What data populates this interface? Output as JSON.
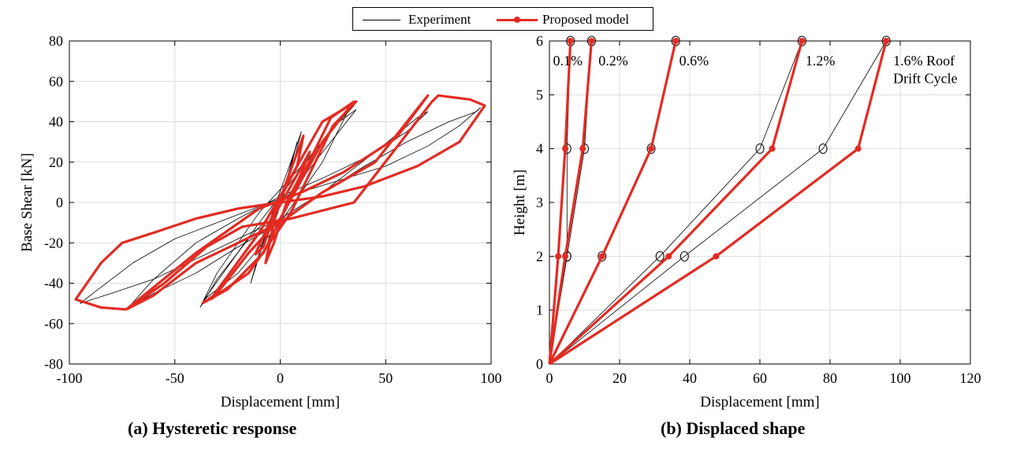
{
  "legend": {
    "items": [
      {
        "label": "Experiment",
        "color": "#000000"
      },
      {
        "label": "Proposed model",
        "color": "#e32b22"
      }
    ]
  },
  "captions": {
    "a": "(a) Hysteretic response",
    "b": "(b) Displaced shape"
  },
  "colors": {
    "experiment": "#000000",
    "model": "#e32b22",
    "grid": "#dddddd"
  },
  "chart_data": [
    {
      "type": "line",
      "xlabel": "Displacement [mm]",
      "ylabel": "Base Shear [kN]",
      "xlim": [
        -100,
        100
      ],
      "ylim": [
        -80,
        80
      ],
      "xticks": [
        -100,
        -50,
        0,
        50,
        100
      ],
      "yticks": [
        -80,
        -60,
        -40,
        -20,
        0,
        20,
        40,
        60,
        80
      ],
      "grid": true,
      "series": [
        {
          "name": "Proposed model",
          "cycles": [
            {
              "x": [
                -2,
                6,
                14,
                9,
                3,
                -3,
                -7,
                -2
              ],
              "y": [
                -5,
                10,
                25,
                12,
                0,
                -20,
                -30,
                -5
              ]
            },
            {
              "x": [
                -12,
                0,
                11,
                8,
                -1,
                -8,
                -12
              ],
              "y": [
                -26,
                2,
                33,
                18,
                0,
                -22,
                -26
              ]
            },
            {
              "x": [
                -37,
                -25,
                -8,
                8,
                24,
                35,
                20,
                0,
                -15,
                -30,
                -37
              ],
              "y": [
                -50,
                -43,
                -25,
                8,
                42,
                50,
                30,
                -8,
                -25,
                -45,
                -50
              ]
            },
            {
              "x": [
                -33,
                -10,
                20,
                36,
                25,
                5,
                -15,
                -33
              ],
              "y": [
                -48,
                -15,
                40,
                50,
                38,
                -5,
                -35,
                -48
              ]
            },
            {
              "x": [
                -73,
                -60,
                -40,
                -20,
                0,
                20,
                45,
                70,
                55,
                30,
                10,
                -10,
                -40,
                -73
              ],
              "y": [
                -53,
                -46,
                -30,
                -20,
                -10,
                5,
                20,
                53,
                32,
                15,
                5,
                -3,
                -25,
                -53
              ]
            },
            {
              "x": [
                -73,
                -55,
                -35,
                -18,
                5,
                35,
                72,
                75,
                90,
                97,
                85,
                65,
                40,
                20,
                0,
                -20,
                -40,
                -60,
                -75,
                -85,
                -97,
                -85,
                -73
              ],
              "y": [
                -53,
                -40,
                -22,
                -12,
                -8,
                0,
                50,
                53,
                51,
                48,
                30,
                18,
                8,
                3,
                0,
                -3,
                -8,
                -15,
                -20,
                -30,
                -48,
                -52,
                -53
              ]
            }
          ]
        },
        {
          "name": "Experiment",
          "cycles": [
            {
              "x": [
                -6,
                2,
                8,
                4,
                0,
                -4,
                -6
              ],
              "y": [
                -20,
                5,
                30,
                15,
                0,
                -15,
                -20
              ]
            },
            {
              "x": [
                -14,
                -5,
                5,
                10,
                5,
                -2,
                -10,
                -14
              ],
              "y": [
                -40,
                -10,
                15,
                35,
                20,
                0,
                -25,
                -40
              ]
            },
            {
              "x": [
                -36,
                -20,
                0,
                20,
                32,
                35,
                22,
                5,
                -10,
                -25,
                -36
              ],
              "y": [
                -48,
                -35,
                -10,
                20,
                45,
                48,
                33,
                10,
                -10,
                -32,
                -48
              ]
            },
            {
              "x": [
                -38,
                -30,
                -15,
                5,
                30,
                36,
                28,
                10,
                -10,
                -30,
                -38
              ],
              "y": [
                -52,
                -38,
                -18,
                5,
                38,
                46,
                40,
                18,
                -5,
                -35,
                -52
              ]
            },
            {
              "x": [
                -72,
                -60,
                -40,
                -20,
                0,
                20,
                45,
                65,
                70,
                60,
                40,
                20,
                0,
                -20,
                -40,
                -60,
                -72
              ],
              "y": [
                -52,
                -45,
                -35,
                -22,
                -10,
                5,
                25,
                42,
                45,
                35,
                22,
                12,
                3,
                -8,
                -20,
                -38,
                -52
              ]
            },
            {
              "x": [
                -95,
                -80,
                -60,
                -40,
                -20,
                0,
                20,
                40,
                60,
                80,
                93,
                95,
                85,
                70,
                50,
                25,
                0,
                -25,
                -50,
                -70,
                -85,
                -95
              ],
              "y": [
                -50,
                -45,
                -38,
                -28,
                -18,
                -8,
                5,
                18,
                30,
                40,
                45,
                47,
                38,
                28,
                18,
                10,
                2,
                -8,
                -18,
                -30,
                -42,
                -50
              ]
            }
          ]
        }
      ]
    },
    {
      "type": "line",
      "xlabel": "Displacement [mm]",
      "ylabel": "Height [m]",
      "xlim": [
        0,
        120
      ],
      "ylim": [
        0,
        6
      ],
      "xticks": [
        0,
        20,
        40,
        60,
        80,
        100,
        120
      ],
      "yticks": [
        0,
        1,
        2,
        3,
        4,
        5,
        6
      ],
      "grid": true,
      "annotations": [
        {
          "text": "0.1%",
          "x": 1,
          "y": 5.55
        },
        {
          "text": "0.2%",
          "x": 14,
          "y": 5.55
        },
        {
          "text": "0.6%",
          "x": 37,
          "y": 5.55
        },
        {
          "text": "1.2%",
          "x": 73,
          "y": 5.55
        },
        {
          "text": "1.6% Roof",
          "x": 98,
          "y": 5.55
        },
        {
          "text": "Drift Cycle",
          "x": 98,
          "y": 5.22
        }
      ],
      "heights": [
        0,
        2,
        4,
        6
      ],
      "series": [
        {
          "name": "Experiment",
          "cycles": [
            {
              "label": "0.1%",
              "x": [
                0,
                5,
                5,
                6
              ]
            },
            {
              "label": "0.2%",
              "x": [
                0,
                5,
                10,
                12
              ]
            },
            {
              "label": "0.6%",
              "x": [
                0,
                15,
                29,
                36
              ]
            },
            {
              "label": "1.2%",
              "x": [
                0,
                31.5,
                60,
                72
              ]
            },
            {
              "label": "1.6%",
              "x": [
                0,
                38.5,
                78,
                96
              ]
            }
          ]
        },
        {
          "name": "Proposed model",
          "cycles": [
            {
              "label": "0.1%",
              "x": [
                0,
                2.5,
                4.5,
                6
              ]
            },
            {
              "label": "0.2%",
              "x": [
                0,
                4.5,
                9.5,
                12
              ]
            },
            {
              "label": "0.6%",
              "x": [
                0,
                15,
                29,
                36
              ]
            },
            {
              "label": "1.2%",
              "x": [
                0,
                34,
                63.5,
                72
              ]
            },
            {
              "label": "1.6%",
              "x": [
                0,
                47.5,
                88,
                96
              ]
            }
          ]
        }
      ]
    }
  ]
}
